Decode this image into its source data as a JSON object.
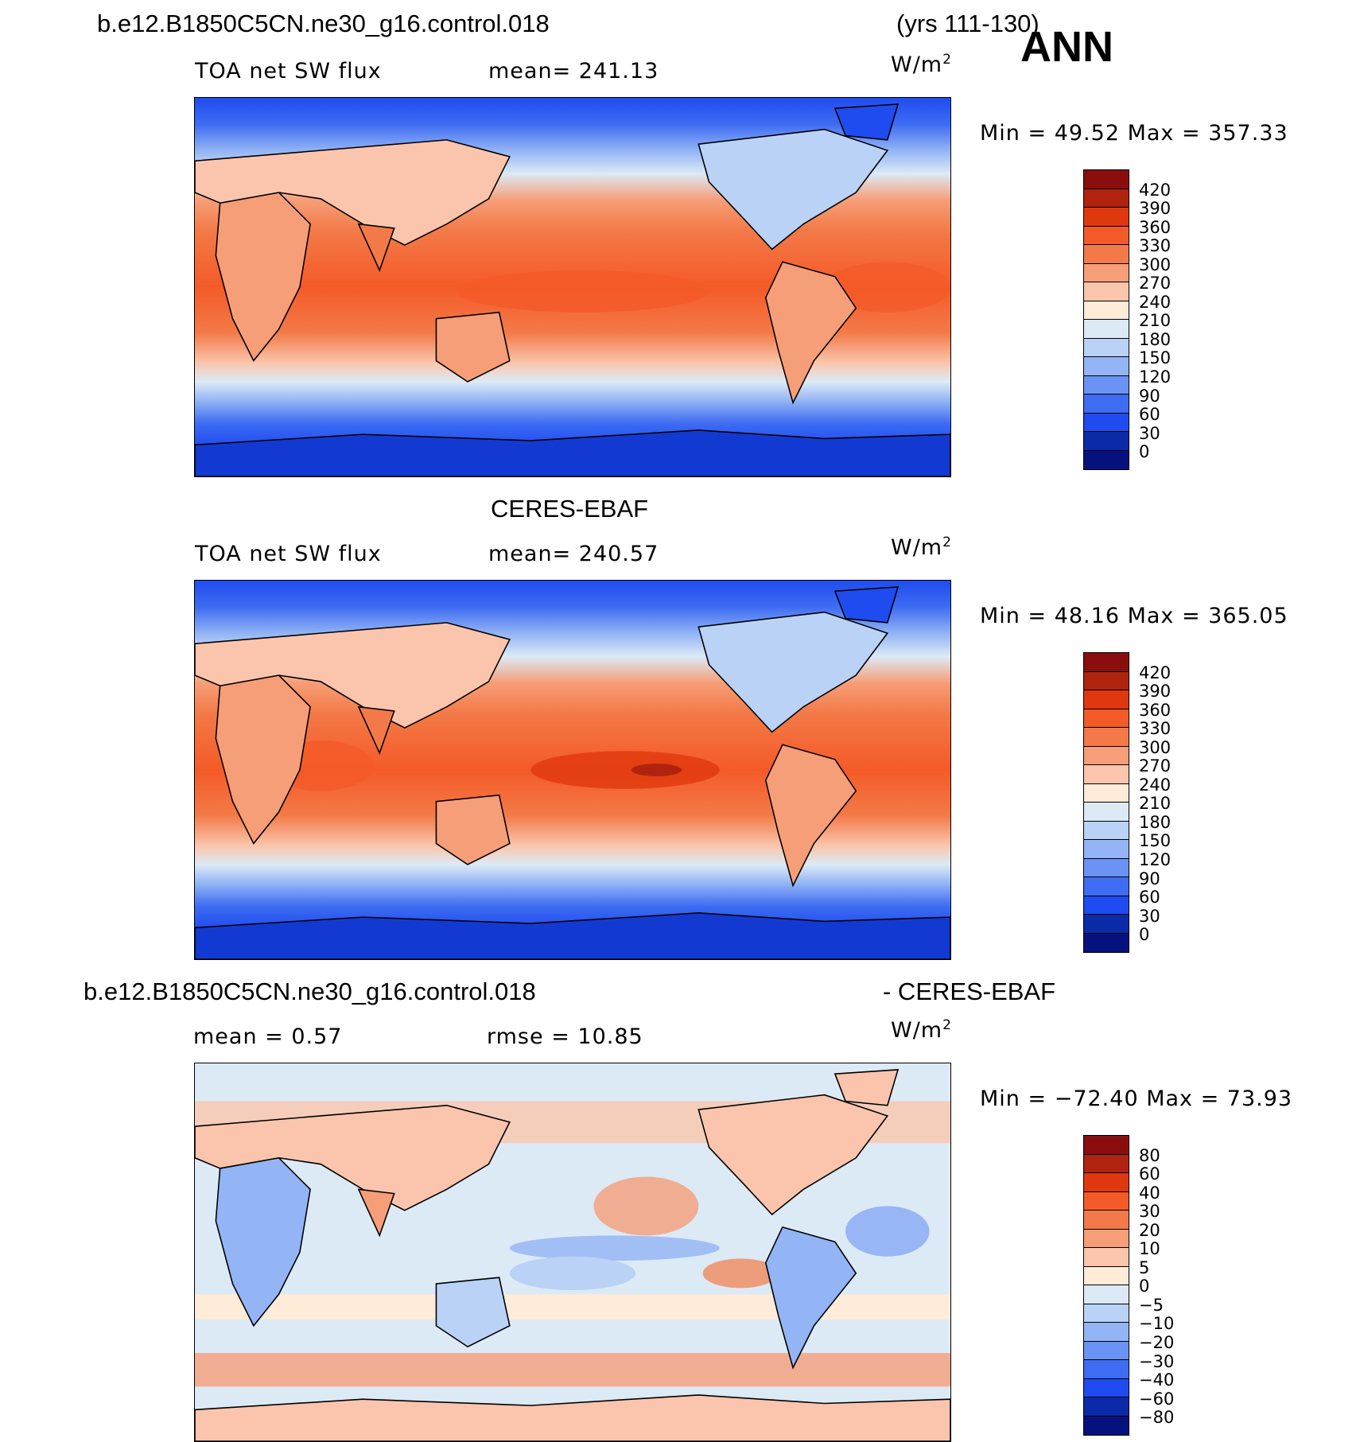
{
  "figure": {
    "case_name": "b.e12.B1850C5CN.ne30_g16.control.018",
    "years": "(yrs 111-130)",
    "season": "ANN",
    "obs_name": "CERES-EBAF",
    "diff_suffix": "- CERES-EBAF",
    "units_base": "W/m",
    "units_exp": "2"
  },
  "panels": [
    {
      "variable": "TOA net SW flux",
      "mean": "mean= 241.13",
      "minmax": "Min =   49.52  Max  =  357.33",
      "ticks": [
        "420",
        "390",
        "360",
        "330",
        "300",
        "270",
        "240",
        "210",
        "180",
        "150",
        "120",
        "90",
        "60",
        "30",
        "0"
      ]
    },
    {
      "variable": "TOA net SW flux",
      "mean": "mean= 240.57",
      "minmax": "Min =   48.16  Max  =  365.05",
      "ticks": [
        "420",
        "390",
        "360",
        "330",
        "300",
        "270",
        "240",
        "210",
        "180",
        "150",
        "120",
        "90",
        "60",
        "30",
        "0"
      ]
    },
    {
      "mean": "mean  =     0.57",
      "rmse": "rmse  =    10.85",
      "minmax": "Min  = −72.40  Max  =    73.93",
      "ticks": [
        "80",
        "60",
        "40",
        "30",
        "20",
        "10",
        "5",
        "0",
        "−5",
        "−10",
        "−20",
        "−30",
        "−40",
        "−60",
        "−80"
      ]
    }
  ],
  "colors": {
    "flux_scale": [
      "#8a0e0e",
      "#b0230e",
      "#e0380e",
      "#f45a28",
      "#f37a48",
      "#f69e78",
      "#fac5ac",
      "#feebd8",
      "#dceaf6",
      "#b9d2f5",
      "#93b4f5",
      "#6b93f5",
      "#3e6cf2",
      "#1f4cf0",
      "#123ad2",
      "#0a2aa8",
      "#05127e"
    ],
    "diff_scale": [
      "#8a0e0e",
      "#b0230e",
      "#e0380e",
      "#f45a28",
      "#f37a48",
      "#f69e78",
      "#fac5ac",
      "#feebd8",
      "#dceaf6",
      "#b9d2f5",
      "#93b4f5",
      "#6b93f5",
      "#3e6cf2",
      "#1f4cf0",
      "#123ad2",
      "#0a2aa8",
      "#05127e"
    ]
  }
}
